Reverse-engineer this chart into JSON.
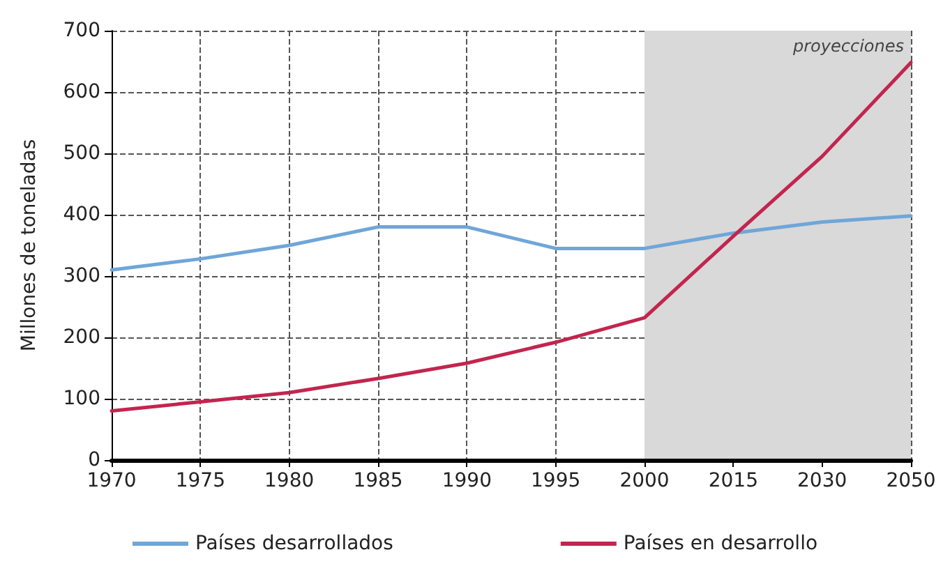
{
  "chart_data": {
    "type": "line",
    "ylabel": "Millones de toneladas",
    "categories": [
      "1970",
      "1975",
      "1980",
      "1985",
      "1990",
      "1995",
      "2000",
      "2015",
      "2030",
      "2050"
    ],
    "series": [
      {
        "name": "Países desarrollados",
        "color": "#6fa6d8",
        "values": [
          310,
          328,
          350,
          380,
          380,
          345,
          345,
          370,
          388,
          398
        ]
      },
      {
        "name": "Países en desarrollo",
        "color": "#c2254f",
        "values": [
          80,
          95,
          110,
          133,
          158,
          192,
          232,
          365,
          495,
          648
        ]
      }
    ],
    "ylim": [
      0,
      700
    ],
    "yticks": [
      0,
      100,
      200,
      300,
      400,
      500,
      600,
      700
    ],
    "grid": true,
    "legend": "bottom",
    "marker": "none",
    "line_style": "solid",
    "bands": [
      {
        "axis": "x",
        "from": "2000",
        "to": "2050",
        "label": "proyecciones",
        "color": "#d9d9d9"
      }
    ]
  }
}
